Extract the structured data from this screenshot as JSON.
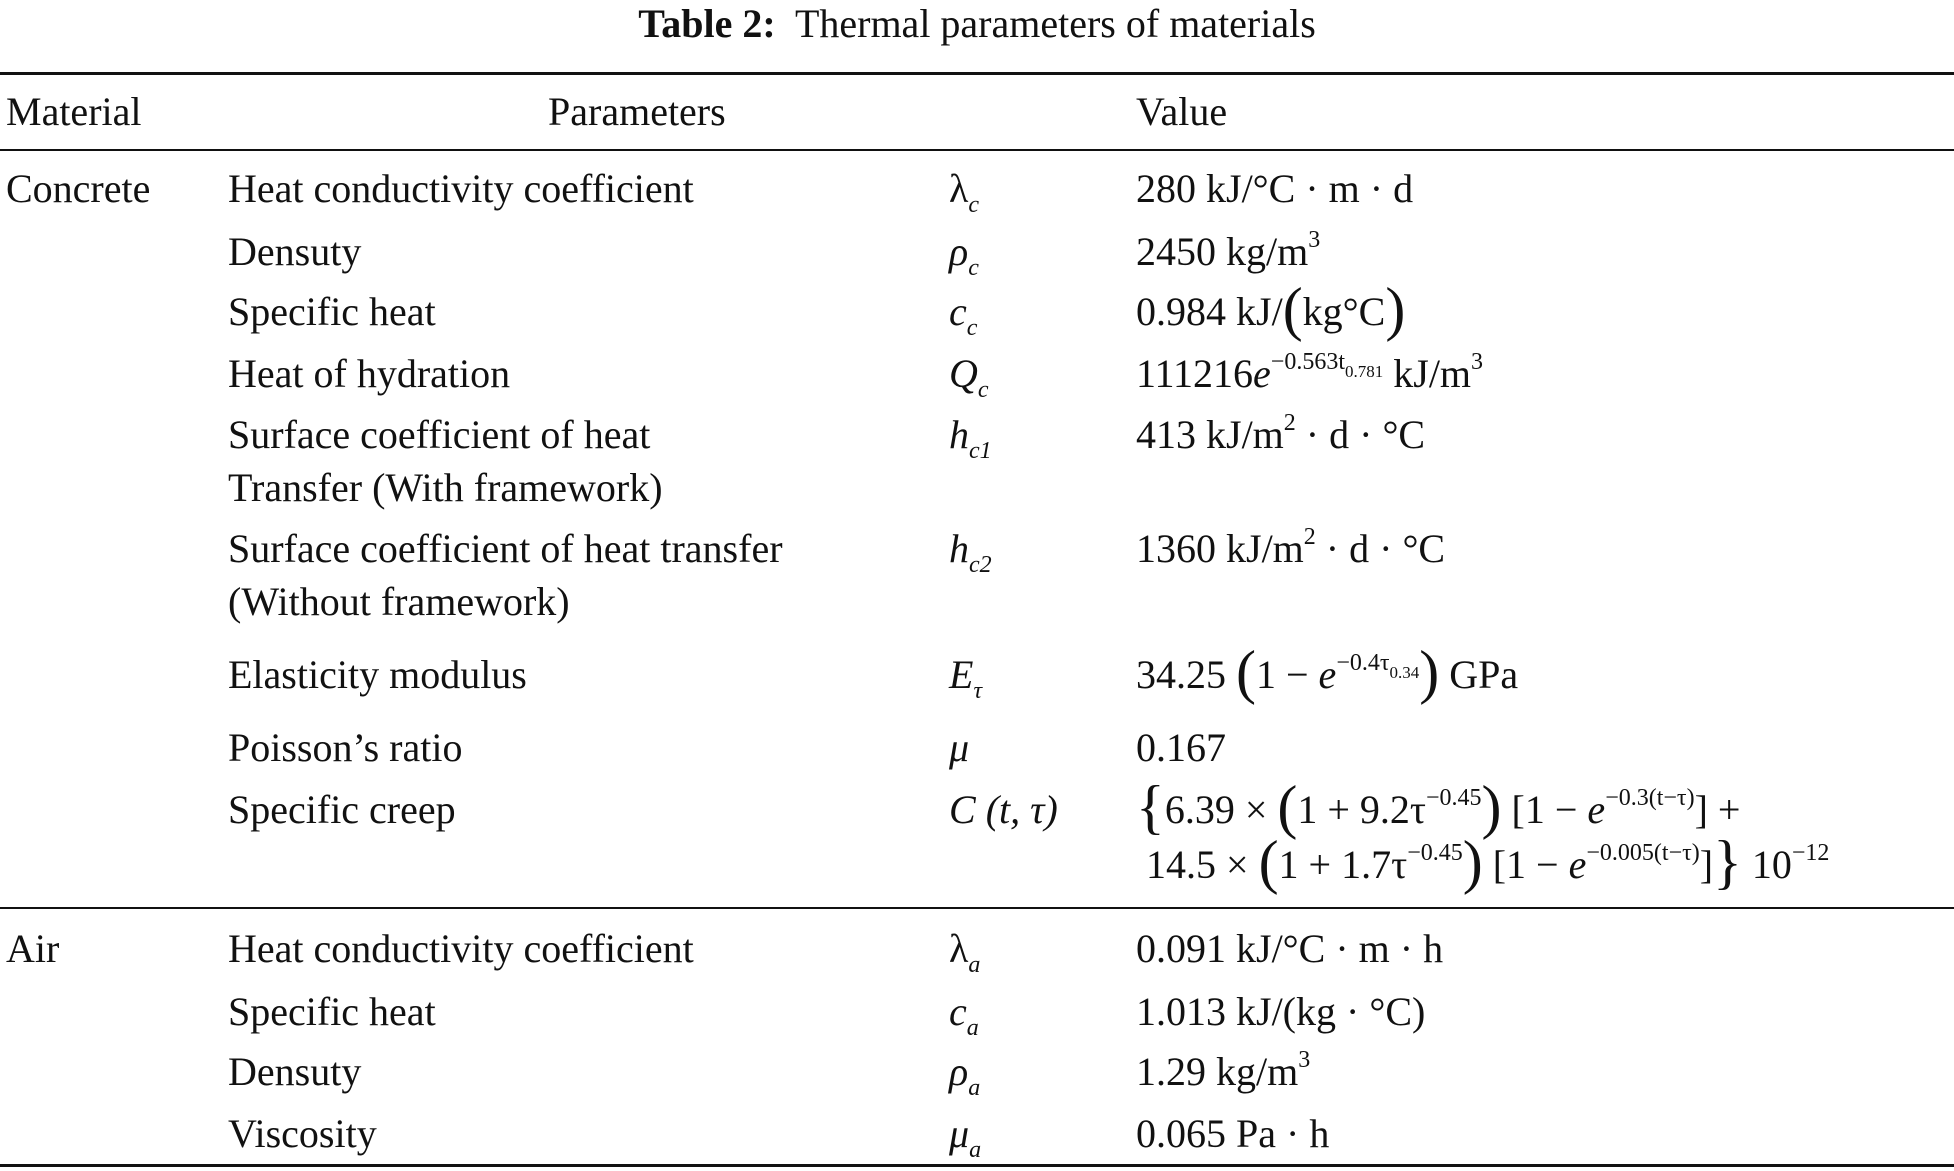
{
  "title": {
    "label": "Table 2:",
    "text": "Thermal parameters of materials"
  },
  "headers": {
    "material": "Material",
    "parameters": "Parameters",
    "value": "Value"
  },
  "rows": [
    {
      "material": "Concrete",
      "param": [
        "Heat conductivity coefficient"
      ],
      "symbol": [
        {
          "t": "λ"
        },
        {
          "t": "c",
          "s": "sub"
        }
      ],
      "value": [
        {
          "t": "280 kJ/°C · m · d"
        }
      ]
    },
    {
      "param": [
        "Densuty"
      ],
      "symbol": [
        {
          "t": "ρ",
          "s": "i"
        },
        {
          "t": "c",
          "s": "sub"
        }
      ],
      "value": [
        {
          "t": "2450 kg/m"
        },
        {
          "t": "3",
          "s": "sup"
        }
      ]
    },
    {
      "param": [
        "Specific heat"
      ],
      "symbol": [
        {
          "t": "c",
          "s": "i"
        },
        {
          "t": "c",
          "s": "sub"
        }
      ],
      "value": [
        {
          "t": "0.984 kJ/"
        },
        {
          "t": "(",
          "s": "big"
        },
        {
          "t": "kg°C"
        },
        {
          "t": ")",
          "s": "big"
        }
      ]
    },
    {
      "param": [
        "Heat of hydration"
      ],
      "symbol": [
        {
          "t": "Q",
          "s": "i"
        },
        {
          "t": "c",
          "s": "sub"
        }
      ],
      "value": [
        {
          "t": "111216"
        },
        {
          "t": "e",
          "s": "i"
        },
        {
          "t": "−0.563t",
          "s": "sup"
        },
        {
          "t": "0.781",
          "s": "sup2"
        },
        {
          "t": " kJ/m"
        },
        {
          "t": "3",
          "s": "sup"
        }
      ]
    },
    {
      "param": [
        "Surface coefficient of heat",
        "Transfer (With framework)"
      ],
      "symbol": [
        {
          "t": "h",
          "s": "i"
        },
        {
          "t": "c1",
          "s": "sub"
        }
      ],
      "value": [
        {
          "t": "413 kJ/m"
        },
        {
          "t": "2",
          "s": "sup"
        },
        {
          "t": " · d · °C"
        }
      ]
    },
    {
      "param": [
        "Surface coefficient of heat transfer",
        "(Without framework)"
      ],
      "symbol": [
        {
          "t": "h",
          "s": "i"
        },
        {
          "t": "c2",
          "s": "sub"
        }
      ],
      "value": [
        {
          "t": "1360 kJ/m"
        },
        {
          "t": "2",
          "s": "sup"
        },
        {
          "t": " · d · °C"
        }
      ]
    },
    {
      "param": [
        "Elasticity modulus"
      ],
      "symbol": [
        {
          "t": "E",
          "s": "i"
        },
        {
          "t": "τ",
          "s": "sub"
        }
      ],
      "value": [
        {
          "t": "34.25 "
        },
        {
          "t": "(",
          "s": "big"
        },
        {
          "t": "1 − "
        },
        {
          "t": "e",
          "s": "i"
        },
        {
          "t": "−0.4τ",
          "s": "sup"
        },
        {
          "t": "0.34",
          "s": "sup2"
        },
        {
          "t": ")",
          "s": "big"
        },
        {
          "t": " GPa"
        }
      ]
    },
    {
      "param": [
        "Poisson’s ratio"
      ],
      "symbol": [
        {
          "t": "μ",
          "s": "i"
        }
      ],
      "value": [
        {
          "t": "0.167"
        }
      ]
    },
    {
      "param": [
        "Specific creep"
      ],
      "symbol": [
        {
          "t": "C",
          "s": "i"
        },
        {
          "t": " (t, τ)",
          "s": "i"
        }
      ],
      "value": [
        {
          "t": "{",
          "s": "big"
        },
        {
          "t": "6.39 × "
        },
        {
          "t": "(",
          "s": "big"
        },
        {
          "t": "1 + 9.2τ"
        },
        {
          "t": "−0.45",
          "s": "sup"
        },
        {
          "t": ")",
          "s": "big"
        },
        {
          "t": " [1 − "
        },
        {
          "t": "e",
          "s": "i"
        },
        {
          "t": "−0.3(t−τ)",
          "s": "sup"
        },
        {
          "t": "] +"
        }
      ],
      "value2": [
        {
          "t": "14.5 × "
        },
        {
          "t": "(",
          "s": "big"
        },
        {
          "t": "1 + 1.7τ"
        },
        {
          "t": "−0.45",
          "s": "sup"
        },
        {
          "t": ")",
          "s": "big"
        },
        {
          "t": " [1 − "
        },
        {
          "t": "e",
          "s": "i"
        },
        {
          "t": "−0.005(t−τ)",
          "s": "sup"
        },
        {
          "t": "]"
        },
        {
          "t": "}",
          "s": "big"
        },
        {
          "t": " 10"
        },
        {
          "t": "−12",
          "s": "sup"
        }
      ]
    },
    {
      "material": "Air",
      "param": [
        "Heat conductivity coefficient"
      ],
      "symbol": [
        {
          "t": "λ"
        },
        {
          "t": "a",
          "s": "sub"
        }
      ],
      "value": [
        {
          "t": "0.091 kJ/°C · m · h"
        }
      ]
    },
    {
      "param": [
        "Specific heat"
      ],
      "symbol": [
        {
          "t": "c",
          "s": "i"
        },
        {
          "t": "a",
          "s": "sub"
        }
      ],
      "value": [
        {
          "t": "1.013 kJ/(kg · °C)"
        }
      ]
    },
    {
      "param": [
        "Densuty"
      ],
      "symbol": [
        {
          "t": "ρ",
          "s": "i"
        },
        {
          "t": "a",
          "s": "sub"
        }
      ],
      "value": [
        {
          "t": "1.29 kg/m"
        },
        {
          "t": "3",
          "s": "sup"
        }
      ]
    },
    {
      "param": [
        "Viscosity"
      ],
      "symbol": [
        {
          "t": "μ",
          "s": "i"
        },
        {
          "t": "a",
          "s": "sub"
        }
      ],
      "value": [
        {
          "t": "0.065 Pa · h"
        }
      ]
    }
  ]
}
